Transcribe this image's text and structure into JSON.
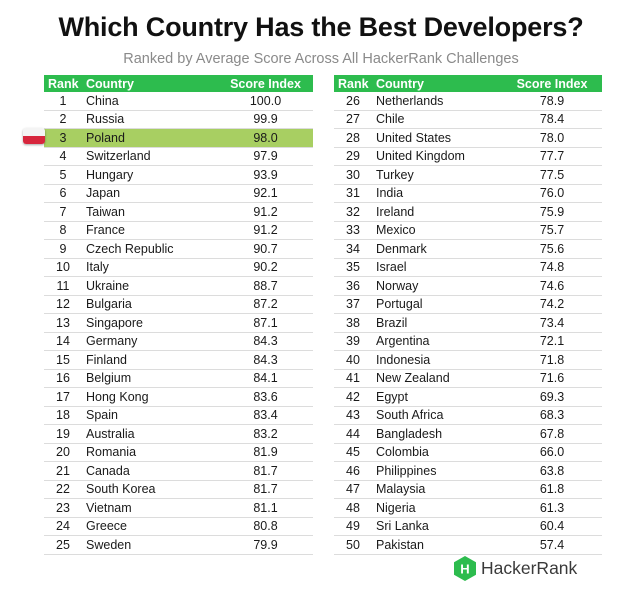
{
  "title": "Which Country Has the Best Developers?",
  "subtitle": "Ranked by Average Score Across All HackerRank Challenges",
  "brand": {
    "name": "HackerRank",
    "badge_letter": "H",
    "color": "#2dbc4e"
  },
  "colors": {
    "header": "#2dbc4e",
    "highlight": "#a8cf62"
  },
  "highlighted_rank": 3,
  "chart_data": {
    "type": "table",
    "columns": [
      "Rank",
      "Country",
      "Score Index"
    ],
    "rows": [
      [
        "1",
        "China",
        "100.0"
      ],
      [
        "2",
        "Russia",
        "99.9"
      ],
      [
        "3",
        "Poland",
        "98.0"
      ],
      [
        "4",
        "Switzerland",
        "97.9"
      ],
      [
        "5",
        "Hungary",
        "93.9"
      ],
      [
        "6",
        "Japan",
        "92.1"
      ],
      [
        "7",
        "Taiwan",
        "91.2"
      ],
      [
        "8",
        "France",
        "91.2"
      ],
      [
        "9",
        "Czech Republic",
        "90.7"
      ],
      [
        "10",
        "Italy",
        "90.2"
      ],
      [
        "11",
        "Ukraine",
        "88.7"
      ],
      [
        "12",
        "Bulgaria",
        "87.2"
      ],
      [
        "13",
        "Singapore",
        "87.1"
      ],
      [
        "14",
        "Germany",
        "84.3"
      ],
      [
        "15",
        "Finland",
        "84.3"
      ],
      [
        "16",
        "Belgium",
        "84.1"
      ],
      [
        "17",
        "Hong Kong",
        "83.6"
      ],
      [
        "18",
        "Spain",
        "83.4"
      ],
      [
        "19",
        "Australia",
        "83.2"
      ],
      [
        "20",
        "Romania",
        "81.9"
      ],
      [
        "21",
        "Canada",
        "81.7"
      ],
      [
        "22",
        "South Korea",
        "81.7"
      ],
      [
        "23",
        "Vietnam",
        "81.1"
      ],
      [
        "24",
        "Greece",
        "80.8"
      ],
      [
        "25",
        "Sweden",
        "79.9"
      ],
      [
        "26",
        "Netherlands",
        "78.9"
      ],
      [
        "27",
        "Chile",
        "78.4"
      ],
      [
        "28",
        "United States",
        "78.0"
      ],
      [
        "29",
        "United Kingdom",
        "77.7"
      ],
      [
        "30",
        "Turkey",
        "77.5"
      ],
      [
        "31",
        "India",
        "76.0"
      ],
      [
        "32",
        "Ireland",
        "75.9"
      ],
      [
        "33",
        "Mexico",
        "75.7"
      ],
      [
        "34",
        "Denmark",
        "75.6"
      ],
      [
        "35",
        "Israel",
        "74.8"
      ],
      [
        "36",
        "Norway",
        "74.6"
      ],
      [
        "37",
        "Portugal",
        "74.2"
      ],
      [
        "38",
        "Brazil",
        "73.4"
      ],
      [
        "39",
        "Argentina",
        "72.1"
      ],
      [
        "40",
        "Indonesia",
        "71.8"
      ],
      [
        "41",
        "New Zealand",
        "71.6"
      ],
      [
        "42",
        "Egypt",
        "69.3"
      ],
      [
        "43",
        "South Africa",
        "68.3"
      ],
      [
        "44",
        "Bangladesh",
        "67.8"
      ],
      [
        "45",
        "Colombia",
        "66.0"
      ],
      [
        "46",
        "Philippines",
        "63.8"
      ],
      [
        "47",
        "Malaysia",
        "61.8"
      ],
      [
        "48",
        "Nigeria",
        "61.3"
      ],
      [
        "49",
        "Sri Lanka",
        "60.4"
      ],
      [
        "50",
        "Pakistan",
        "57.4"
      ]
    ]
  }
}
